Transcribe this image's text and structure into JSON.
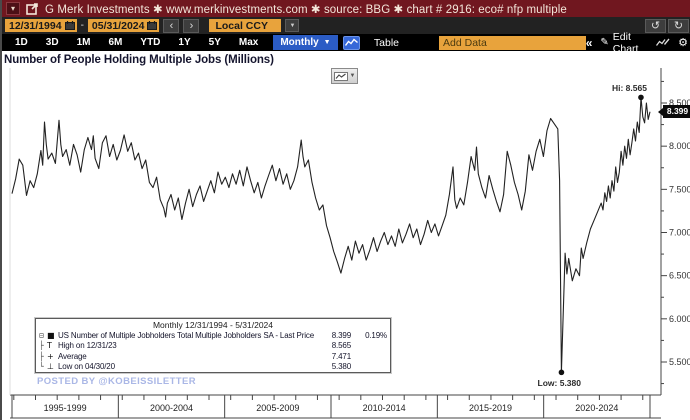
{
  "titlebar": {
    "title": "G Merk Investments ✱ www.merkinvestments.com ✱ source: BBG ✱ chart # 2916: eco# nfp multiple"
  },
  "toolbar": {
    "date_from": "12/31/1994",
    "date_to": "05/31/2024",
    "dash": "-",
    "prev": "‹",
    "next": "›",
    "currency": "Local CCY",
    "currency_caret": "▼",
    "undo": "↺",
    "redo": "↻",
    "ranges": [
      "1D",
      "3D",
      "1M",
      "6M",
      "YTD",
      "1Y",
      "5Y",
      "Max"
    ],
    "frequency": "Monthly",
    "frequency_caret": "▼",
    "table_label": "Table",
    "add_data_placeholder": "Add Data",
    "collapse_label": "«",
    "pencil_glyph": "✎",
    "edit_chart_label": "Edit Chart",
    "gear_glyph": "⚙",
    "dock_glyph": "▾"
  },
  "chart": {
    "title": "Number of People Holding Multiple Jobs (Millions)",
    "hi_label": "Hi: 8.565",
    "low_label": "Low: 5.380",
    "last_price_tag": "8.399"
  },
  "legend": {
    "header": "Monthly 12/31/1994 - 5/31/2024",
    "rows": [
      {
        "tree": "⊟",
        "marker": "■",
        "label": "US Number of Multiple Jobholders Total Multiple Jobholders SA - Last Price",
        "value": "8.399",
        "extra": "0.19%"
      },
      {
        "tree": "├",
        "marker": "T",
        "label": "High on 12/31/23",
        "value": "8.565",
        "extra": ""
      },
      {
        "tree": "├",
        "marker": "+",
        "label": "Average",
        "value": "7.471",
        "extra": ""
      },
      {
        "tree": "└",
        "marker": "⊥",
        "label": "Low on 04/30/20",
        "value": "5.380",
        "extra": ""
      }
    ]
  },
  "watermark": "POSTED BY @KOBEISSILETTER",
  "colors": {
    "titlebar_bg": "#70171f",
    "accent_orange": "#e8a33c",
    "accent_blue": "#2b5cc5",
    "icon_blue": "#3668d8",
    "line": "#222222",
    "watermark": "#aab7e6",
    "tag_bg": "#0a0a0a"
  },
  "chart_data": {
    "type": "line",
    "title": "Number of People Holding Multiple Jobs (Millions)",
    "x_cells": [
      "1995-1999",
      "2000-2004",
      "2005-2009",
      "2010-2014",
      "2015-2019",
      "2020-2024"
    ],
    "x_months_range": [
      0,
      353
    ],
    "x_start_date": "12/31/1994",
    "x_end_date": "5/31/2024",
    "y_major_ticks": [
      5.5,
      6.0,
      6.5,
      7.0,
      7.5,
      8.0,
      8.5
    ],
    "y_minor_step": 0.25,
    "ylim": [
      5.12,
      8.92
    ],
    "grid": false,
    "legend_position": "bottom-left",
    "hi": {
      "month": 348,
      "value": 8.565,
      "date": "12/31/23"
    },
    "low": {
      "month": 304,
      "value": 5.38,
      "date": "04/30/20"
    },
    "average": 7.471,
    "last": {
      "value": 8.399,
      "pct": "0.19%"
    },
    "series": [
      {
        "name": "US Number of Multiple Jobholders Total Multiple Jobholders SA",
        "points": [
          [
            0,
            7.45
          ],
          [
            2,
            7.62
          ],
          [
            4,
            7.85
          ],
          [
            6,
            7.78
          ],
          [
            8,
            7.43
          ],
          [
            10,
            7.6
          ],
          [
            12,
            7.52
          ],
          [
            14,
            7.68
          ],
          [
            16,
            7.95
          ],
          [
            17,
            7.78
          ],
          [
            18,
            8.28
          ],
          [
            19,
            8.02
          ],
          [
            20,
            7.85
          ],
          [
            22,
            7.92
          ],
          [
            24,
            7.8
          ],
          [
            26,
            8.3
          ],
          [
            27,
            8.02
          ],
          [
            28,
            7.88
          ],
          [
            30,
            7.96
          ],
          [
            32,
            7.78
          ],
          [
            34,
            8.02
          ],
          [
            36,
            7.9
          ],
          [
            38,
            7.7
          ],
          [
            40,
            7.96
          ],
          [
            42,
            8.1
          ],
          [
            44,
            7.96
          ],
          [
            45,
            8.12
          ],
          [
            46,
            7.86
          ],
          [
            48,
            7.74
          ],
          [
            50,
            8.04
          ],
          [
            52,
            8.12
          ],
          [
            54,
            7.88
          ],
          [
            56,
            8.02
          ],
          [
            58,
            7.84
          ],
          [
            60,
            7.95
          ],
          [
            62,
            8.13
          ],
          [
            64,
            7.94
          ],
          [
            66,
            8.04
          ],
          [
            68,
            7.84
          ],
          [
            70,
            7.92
          ],
          [
            72,
            7.74
          ],
          [
            74,
            7.84
          ],
          [
            76,
            7.58
          ],
          [
            78,
            7.52
          ],
          [
            80,
            7.64
          ],
          [
            82,
            7.38
          ],
          [
            84,
            7.28
          ],
          [
            85,
            7.18
          ],
          [
            86,
            7.34
          ],
          [
            88,
            7.44
          ],
          [
            90,
            7.26
          ],
          [
            92,
            7.4
          ],
          [
            94,
            7.15
          ],
          [
            96,
            7.34
          ],
          [
            98,
            7.5
          ],
          [
            100,
            7.3
          ],
          [
            102,
            7.44
          ],
          [
            104,
            7.54
          ],
          [
            106,
            7.36
          ],
          [
            108,
            7.48
          ],
          [
            110,
            7.6
          ],
          [
            112,
            7.46
          ],
          [
            114,
            7.7
          ],
          [
            116,
            7.56
          ],
          [
            118,
            7.64
          ],
          [
            120,
            7.52
          ],
          [
            122,
            7.68
          ],
          [
            124,
            7.56
          ],
          [
            126,
            7.72
          ],
          [
            128,
            7.54
          ],
          [
            130,
            7.76
          ],
          [
            132,
            7.6
          ],
          [
            134,
            7.46
          ],
          [
            136,
            7.58
          ],
          [
            138,
            7.4
          ],
          [
            140,
            7.54
          ],
          [
            142,
            7.66
          ],
          [
            144,
            7.78
          ],
          [
            146,
            7.6
          ],
          [
            148,
            7.74
          ],
          [
            150,
            7.56
          ],
          [
            152,
            7.68
          ],
          [
            154,
            7.5
          ],
          [
            156,
            7.6
          ],
          [
            158,
            7.76
          ],
          [
            160,
            8.07
          ],
          [
            161,
            7.88
          ],
          [
            162,
            7.76
          ],
          [
            164,
            7.84
          ],
          [
            166,
            7.58
          ],
          [
            168,
            7.4
          ],
          [
            170,
            7.26
          ],
          [
            172,
            7.32
          ],
          [
            174,
            7.08
          ],
          [
            176,
            6.94
          ],
          [
            178,
            6.78
          ],
          [
            180,
            6.66
          ],
          [
            182,
            6.53
          ],
          [
            184,
            6.7
          ],
          [
            186,
            6.84
          ],
          [
            188,
            6.68
          ],
          [
            190,
            6.9
          ],
          [
            192,
            6.76
          ],
          [
            194,
            6.86
          ],
          [
            196,
            6.68
          ],
          [
            198,
            6.8
          ],
          [
            200,
            6.94
          ],
          [
            202,
            6.78
          ],
          [
            204,
            6.9
          ],
          [
            206,
            7.0
          ],
          [
            208,
            6.86
          ],
          [
            210,
            6.96
          ],
          [
            212,
            6.84
          ],
          [
            214,
            7.04
          ],
          [
            216,
            6.88
          ],
          [
            218,
            6.98
          ],
          [
            220,
            7.1
          ],
          [
            222,
            6.94
          ],
          [
            224,
            7.04
          ],
          [
            226,
            6.86
          ],
          [
            228,
            6.98
          ],
          [
            230,
            7.14
          ],
          [
            232,
            7.0
          ],
          [
            234,
            7.1
          ],
          [
            236,
            6.96
          ],
          [
            238,
            7.08
          ],
          [
            240,
            7.2
          ],
          [
            242,
            7.44
          ],
          [
            244,
            7.76
          ],
          [
            245,
            7.38
          ],
          [
            246,
            7.28
          ],
          [
            248,
            7.4
          ],
          [
            250,
            7.32
          ],
          [
            252,
            7.58
          ],
          [
            254,
            7.88
          ],
          [
            256,
            7.72
          ],
          [
            257,
            7.99
          ],
          [
            258,
            7.68
          ],
          [
            260,
            7.52
          ],
          [
            262,
            7.4
          ],
          [
            264,
            7.66
          ],
          [
            266,
            7.5
          ],
          [
            268,
            7.36
          ],
          [
            270,
            7.24
          ],
          [
            272,
            7.44
          ],
          [
            274,
            7.94
          ],
          [
            276,
            7.78
          ],
          [
            278,
            7.58
          ],
          [
            280,
            7.44
          ],
          [
            282,
            7.26
          ],
          [
            284,
            7.48
          ],
          [
            286,
            7.9
          ],
          [
            288,
            7.72
          ],
          [
            290,
            7.94
          ],
          [
            292,
            8.08
          ],
          [
            294,
            7.88
          ],
          [
            296,
            8.18
          ],
          [
            298,
            8.32
          ],
          [
            300,
            8.26
          ],
          [
            302,
            8.2
          ],
          [
            303,
            7.6
          ],
          [
            304,
            5.38
          ],
          [
            306,
            6.76
          ],
          [
            307,
            6.52
          ],
          [
            308,
            6.7
          ],
          [
            310,
            6.44
          ],
          [
            312,
            6.58
          ],
          [
            314,
            6.5
          ],
          [
            315,
            6.82
          ],
          [
            316,
            6.7
          ],
          [
            318,
            6.88
          ],
          [
            320,
            7.04
          ],
          [
            322,
            7.14
          ],
          [
            324,
            7.24
          ],
          [
            326,
            7.34
          ],
          [
            327,
            7.26
          ],
          [
            328,
            7.46
          ],
          [
            329,
            7.36
          ],
          [
            330,
            7.54
          ],
          [
            331,
            7.4
          ],
          [
            332,
            7.6
          ],
          [
            333,
            7.48
          ],
          [
            334,
            7.76
          ],
          [
            335,
            7.58
          ],
          [
            336,
            7.7
          ],
          [
            337,
            7.94
          ],
          [
            338,
            7.78
          ],
          [
            339,
            8.0
          ],
          [
            340,
            7.86
          ],
          [
            341,
            8.08
          ],
          [
            342,
            7.9
          ],
          [
            343,
            8.04
          ],
          [
            344,
            8.2
          ],
          [
            345,
            8.06
          ],
          [
            346,
            8.28
          ],
          [
            347,
            8.16
          ],
          [
            348,
            8.565
          ],
          [
            349,
            8.34
          ],
          [
            350,
            8.27
          ],
          [
            351,
            8.5
          ],
          [
            352,
            8.31
          ],
          [
            353,
            8.399
          ]
        ]
      }
    ]
  }
}
